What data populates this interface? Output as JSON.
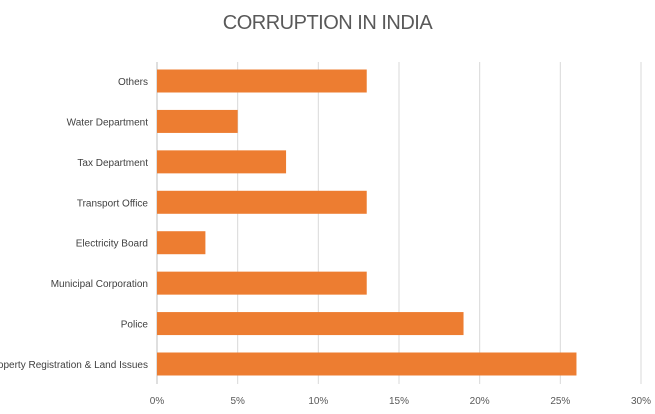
{
  "chart_data": {
    "type": "bar",
    "orientation": "horizontal",
    "title": "CORRUPTION IN INDIA",
    "xlabel": "",
    "ylabel": "",
    "categories": [
      "Others",
      "Water Department",
      "Tax Department",
      "Transport Office",
      "Electricity Board",
      "Municipal Corporation",
      "Police",
      "Property Registration & Land Issues"
    ],
    "values": [
      13,
      5,
      8,
      13,
      3,
      13,
      19,
      26
    ],
    "xlim": [
      0,
      30
    ],
    "x_ticks": [
      "0%",
      "5%",
      "10%",
      "15%",
      "20%",
      "25%",
      "30%"
    ],
    "grid": true,
    "legend": "none",
    "bar_color": "#ED7D31"
  }
}
